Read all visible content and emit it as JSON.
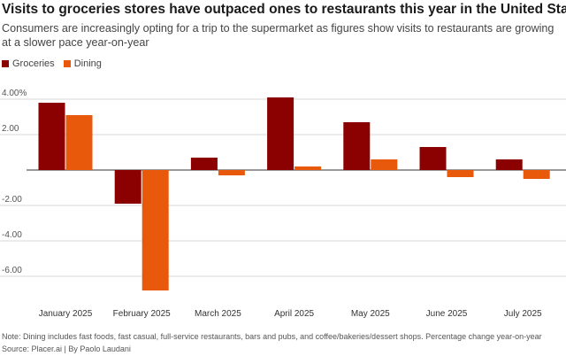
{
  "chart_data": {
    "type": "bar",
    "title": "Visits to groceries stores have outpaced ones to restaurants this year in the United States",
    "subtitle": "Consumers are increasingly opting for a trip to the supermarket as figures show visits to restaurants are growing at a slower pace year-on-year",
    "categories": [
      "January 2025",
      "February 2025",
      "March 2025",
      "April 2025",
      "May 2025",
      "June 2025",
      "July 2025"
    ],
    "series": [
      {
        "name": "Groceries",
        "color": "#8b0000",
        "values": [
          3.8,
          -1.9,
          0.7,
          4.1,
          2.7,
          1.3,
          0.6
        ]
      },
      {
        "name": "Dining",
        "color": "#e8590c",
        "values": [
          3.1,
          -6.8,
          -0.3,
          0.2,
          0.6,
          -0.4,
          -0.5
        ]
      }
    ],
    "ylim": [
      -7.0,
      4.5
    ],
    "yticks": [
      4,
      2,
      0,
      -2,
      -4,
      -6
    ],
    "ytick_labels": [
      "4.00%",
      "2.00",
      "",
      "-2.00",
      "-4.00",
      "-6.00"
    ],
    "xlabel": "",
    "ylabel": "",
    "grid": true,
    "legend": "top-left"
  },
  "footer": {
    "note": "Note: Dining includes fast foods, fast casual, full-service restaurants, bars and pubs, and coffee/bakeries/dessert shops. Percentage change year-on-year",
    "source": "Source: Placer.ai | By Paolo Laudani"
  }
}
